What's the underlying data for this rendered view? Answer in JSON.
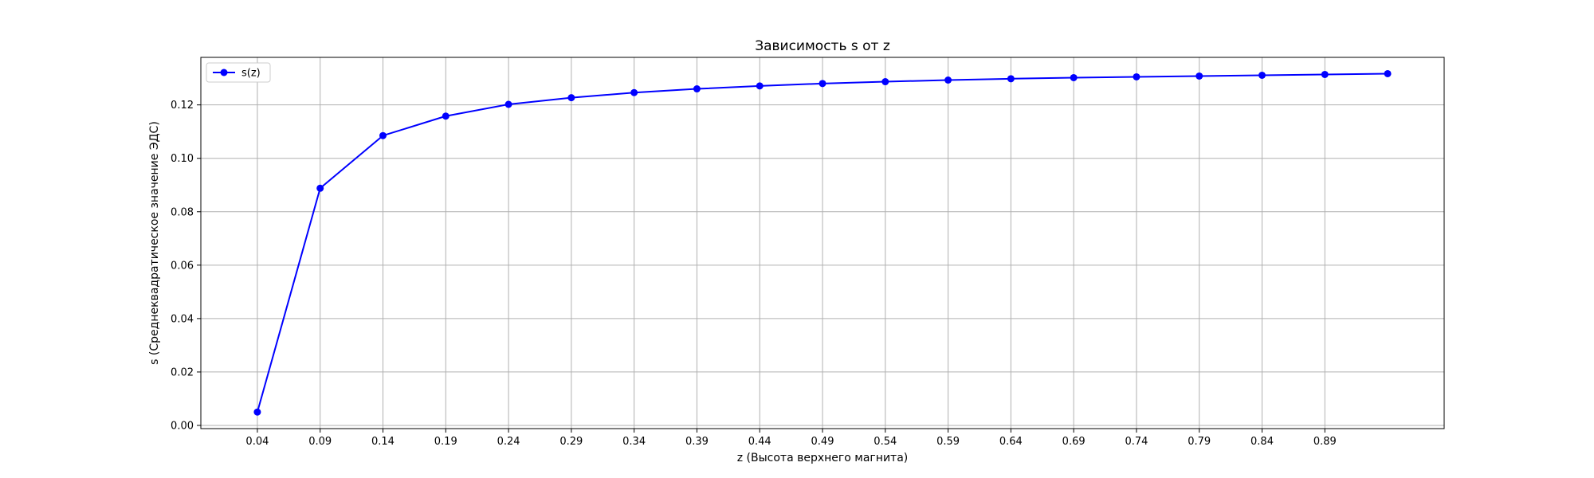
{
  "chart_data": {
    "type": "line",
    "title": "Зависимость s от z",
    "xlabel": "z (Высота верхнего магнита)",
    "ylabel": "s (Среднеквадратическое значение ЭДС)",
    "x_ticks": [
      "0.04",
      "0.09",
      "0.14",
      "0.19",
      "0.24",
      "0.29",
      "0.34",
      "0.39",
      "0.44",
      "0.49",
      "0.54",
      "0.59",
      "0.64",
      "0.69",
      "0.74",
      "0.79",
      "0.84",
      "0.89"
    ],
    "y_ticks": [
      "0.00",
      "0.02",
      "0.04",
      "0.06",
      "0.08",
      "0.10",
      "0.12"
    ],
    "xlim": [
      -0.005,
      0.985
    ],
    "ylim": [
      -0.0012,
      0.1378
    ],
    "grid": true,
    "legend_position": "upper-left",
    "series": [
      {
        "name": "s(z)",
        "color": "#0000ff",
        "marker": "circle",
        "x": [
          0.04,
          0.09,
          0.14,
          0.19,
          0.24,
          0.29,
          0.34,
          0.39,
          0.44,
          0.49,
          0.54,
          0.59,
          0.64,
          0.69,
          0.74,
          0.79,
          0.84,
          0.89,
          0.94
        ],
        "y": [
          0.005,
          0.0888,
          0.1085,
          0.1158,
          0.1202,
          0.1227,
          0.1246,
          0.126,
          0.1271,
          0.128,
          0.1287,
          0.1293,
          0.1298,
          0.1302,
          0.1305,
          0.1308,
          0.1311,
          0.1314,
          0.1317
        ]
      }
    ]
  }
}
